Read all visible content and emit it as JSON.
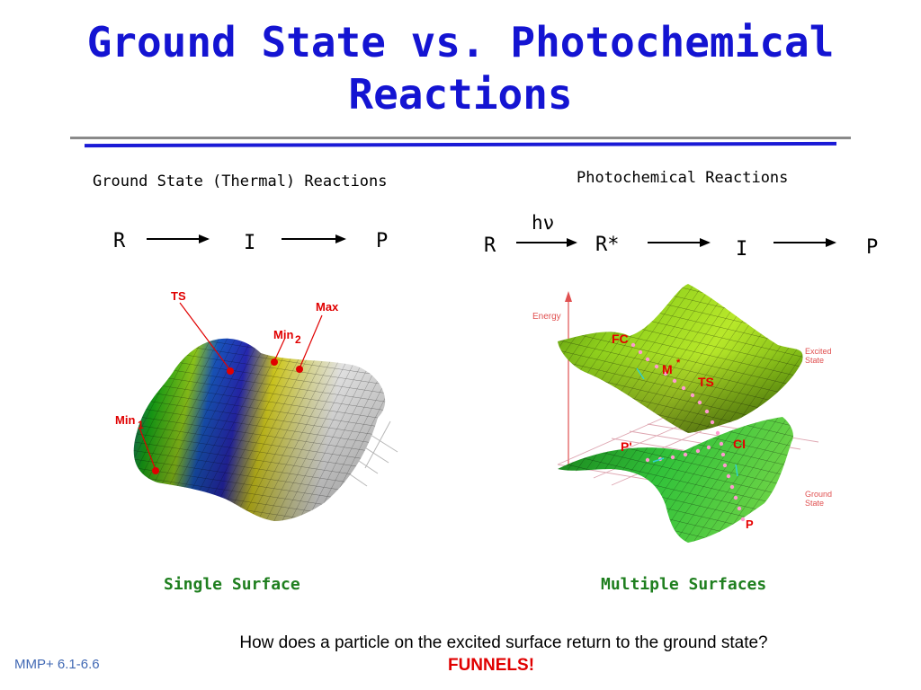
{
  "slide": {
    "title_line1": "Ground State vs. Photochemical",
    "title_line2": "Reactions",
    "left": {
      "heading": "Ground State (Thermal) Reactions",
      "scheme": [
        "R",
        "I",
        "P"
      ],
      "labels": {
        "ts": "TS",
        "max": "Max",
        "min2": "Min",
        "min2_sub": "2",
        "min1": "Min",
        "min1_sub": "1"
      },
      "caption": "Single Surface"
    },
    "right": {
      "heading": "Photochemical Reactions",
      "scheme": [
        "R",
        "R*",
        "I",
        "P"
      ],
      "photon": "hν",
      "labels": {
        "energy": "Energy",
        "fc": "FC",
        "m": "M",
        "m_star": "*",
        "ts": "TS",
        "ci": "CI",
        "p_prime": "P'",
        "p": "P",
        "excited1": "Excited",
        "excited2": "State",
        "ground1": "Ground",
        "ground2": "State"
      },
      "caption": "Multiple Surfaces"
    },
    "question": "How does a particle on the excited surface return to the ground state?",
    "answer": "FUNNELS!",
    "footer": "MMP+ 6.1-6.6"
  },
  "colors": {
    "title": "#1414d2",
    "caption": "#1f7f1f",
    "answer": "#e00000",
    "label_red": "#e60000"
  }
}
